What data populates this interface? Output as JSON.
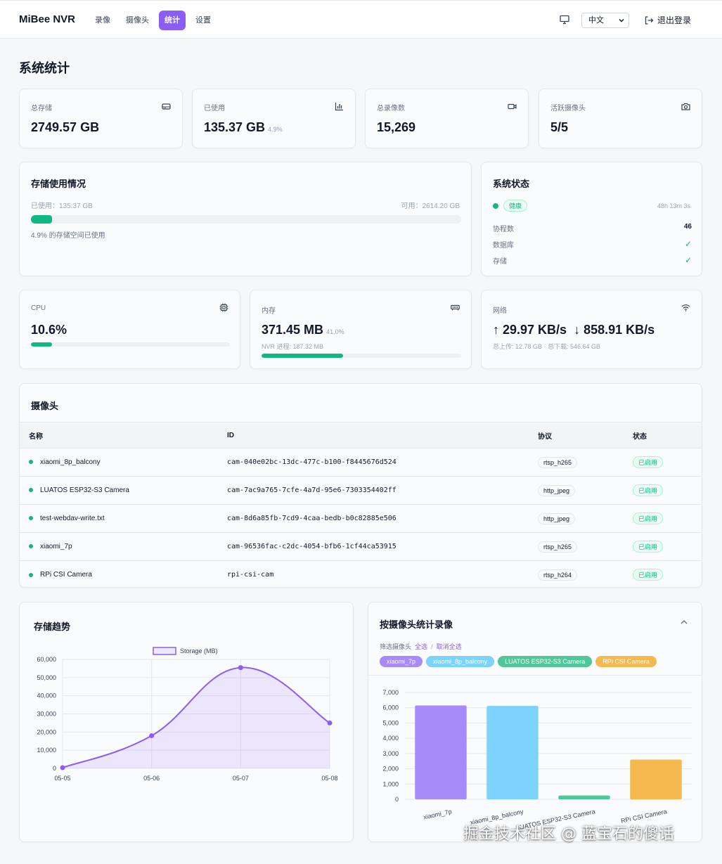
{
  "header": {
    "brand": "MiBee NVR",
    "nav": [
      "录像",
      "摄像头",
      "统计",
      "设置"
    ],
    "language": "中文",
    "logout": "退出登录"
  },
  "page_title": "系统统计",
  "stats": [
    {
      "label": "总存储",
      "value": "2749.57 GB",
      "sub": "",
      "icon": "hard-drive-icon"
    },
    {
      "label": "已使用",
      "value": "135.37 GB",
      "sub": "4.9%",
      "icon": "bar-chart-icon"
    },
    {
      "label": "总录像数",
      "value": "15,269",
      "sub": "",
      "icon": "video-icon"
    },
    {
      "label": "活跃摄像头",
      "value": "5/5",
      "sub": "",
      "icon": "camera-icon"
    }
  ],
  "storage_usage": {
    "title": "存储使用情况",
    "used": "已使用：135.37 GB",
    "available": "可用：2614.20 GB",
    "percent": 4.9,
    "note": "4.9% 的存储空间已使用"
  },
  "system_status": {
    "title": "系统状态",
    "health": "健康",
    "uptime": "48h 13m 3s",
    "rows": [
      {
        "label": "协程数",
        "value": "46"
      },
      {
        "label": "数据库",
        "value": "✓"
      },
      {
        "label": "存储",
        "value": "✓"
      }
    ]
  },
  "cpu": {
    "label": "CPU",
    "value": "10.6%",
    "percent": 10.6
  },
  "memory": {
    "label": "内存",
    "value": "371.45 MB",
    "sub": "41.0%",
    "process": "NVR 进程: 187.32 MB",
    "percent": 41.0
  },
  "network": {
    "label": "网络",
    "up": "↑ 29.97 KB/s",
    "down": "↓ 858.91 KB/s",
    "totals": "总上传: 12.78 GB · 总下载: 546.64 GB"
  },
  "cameras": {
    "title": "摄像头",
    "headers": [
      "名称",
      "ID",
      "协议",
      "状态"
    ],
    "rows": [
      {
        "name": "xiaomi_8p_balcony",
        "id": "cam-040e02bc-13dc-477c-b100-f8445676d524",
        "protocol": "rtsp_h265",
        "status": "已启用"
      },
      {
        "name": "LUATOS ESP32-S3 Camera",
        "id": "cam-7ac9a765-7cfe-4a7d-95e6-7303354402ff",
        "protocol": "http_jpeg",
        "status": "已启用"
      },
      {
        "name": "test-webdav-write.txt",
        "id": "cam-8d6a85fb-7cd9-4caa-bedb-b0c82885e506",
        "protocol": "http_jpeg",
        "status": "已启用"
      },
      {
        "name": "xiaomi_7p",
        "id": "cam-96536fac-c2dc-4054-bfb6-1cf44ca53915",
        "protocol": "rtsp_h265",
        "status": "已启用"
      },
      {
        "name": "RPi CSI Camera",
        "id": "rpi-csi-cam",
        "protocol": "rtsp_h264",
        "status": "已启用"
      }
    ]
  },
  "storage_trend_title": "存储趋势",
  "recordings_title": "按摄像头统计录像",
  "filter": {
    "label": "筛选摄像头",
    "select_all": "全选",
    "separator": "/",
    "deselect_all": "取消全选"
  },
  "pills": [
    {
      "name": "xiaomi_7p",
      "color": "#a78bfa"
    },
    {
      "name": "xiaomi_8p_balcony",
      "color": "#7dd3fc"
    },
    {
      "name": "LUATOS ESP32-S3 Camera",
      "color": "#4fc79a"
    },
    {
      "name": "RPi CSI Camera",
      "color": "#f6b94f"
    }
  ],
  "chart_data": [
    {
      "type": "area",
      "legend": [
        "Storage (MB)"
      ],
      "legend_position": "top-center",
      "x": [
        "05-05",
        "05-06",
        "05-07",
        "05-08"
      ],
      "series": [
        {
          "name": "Storage (MB)",
          "values": [
            400,
            18000,
            55500,
            25000
          ],
          "color": "#8b5cf6"
        }
      ],
      "yticks": [
        "0",
        "10,000",
        "20,000",
        "30,000",
        "40,000",
        "50,000",
        "60,000"
      ],
      "ylim": [
        0,
        60000
      ],
      "grid": true
    },
    {
      "type": "bar",
      "categories": [
        "xiaomi_7p",
        "xiaomi_8p_balcony",
        "LUATOS ESP32-S3 Camera",
        "RPi CSI Camera"
      ],
      "values": [
        6150,
        6120,
        250,
        2600
      ],
      "colors": [
        "#a78bfa",
        "#7dd3fc",
        "#4fc79a",
        "#f6b94f"
      ],
      "yticks": [
        "0",
        "1,000",
        "2,000",
        "3,000",
        "4,000",
        "5,000",
        "6,000",
        "7,000"
      ],
      "ylim": [
        0,
        7000
      ],
      "grid": true
    }
  ],
  "watermark": "掘金技术社区 @ 蓝宝石的傻话"
}
